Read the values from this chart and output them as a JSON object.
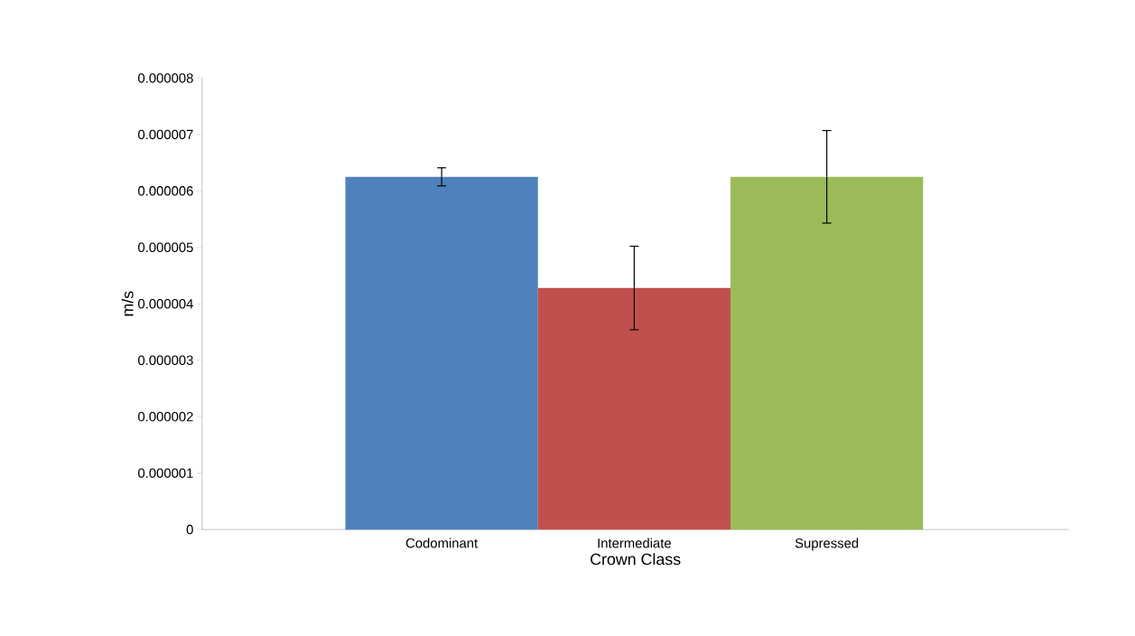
{
  "chart_data": {
    "type": "bar",
    "xlabel": "Crown Class",
    "ylabel": "m/s",
    "categories": [
      "Codominant",
      "Intermediate",
      "Supressed"
    ],
    "values": [
      6.25e-06,
      4.28e-06,
      6.25e-06
    ],
    "errors": [
      1.6e-07,
      7.4e-07,
      8.2e-07
    ],
    "colors": [
      "#4f81bd",
      "#c0504d",
      "#9bbb59"
    ],
    "ylim": [
      0,
      8e-06
    ],
    "yticks": [
      {
        "value": 0,
        "label": "0"
      },
      {
        "value": 1e-06,
        "label": "0.000001"
      },
      {
        "value": 2e-06,
        "label": "0.000002"
      },
      {
        "value": 3e-06,
        "label": "0.000003"
      },
      {
        "value": 4e-06,
        "label": "0.000004"
      },
      {
        "value": 5e-06,
        "label": "0.000005"
      },
      {
        "value": 6e-06,
        "label": "0.000006"
      },
      {
        "value": 7e-06,
        "label": "0.000007"
      },
      {
        "value": 8e-06,
        "label": "0.000008"
      }
    ],
    "grid": false
  }
}
